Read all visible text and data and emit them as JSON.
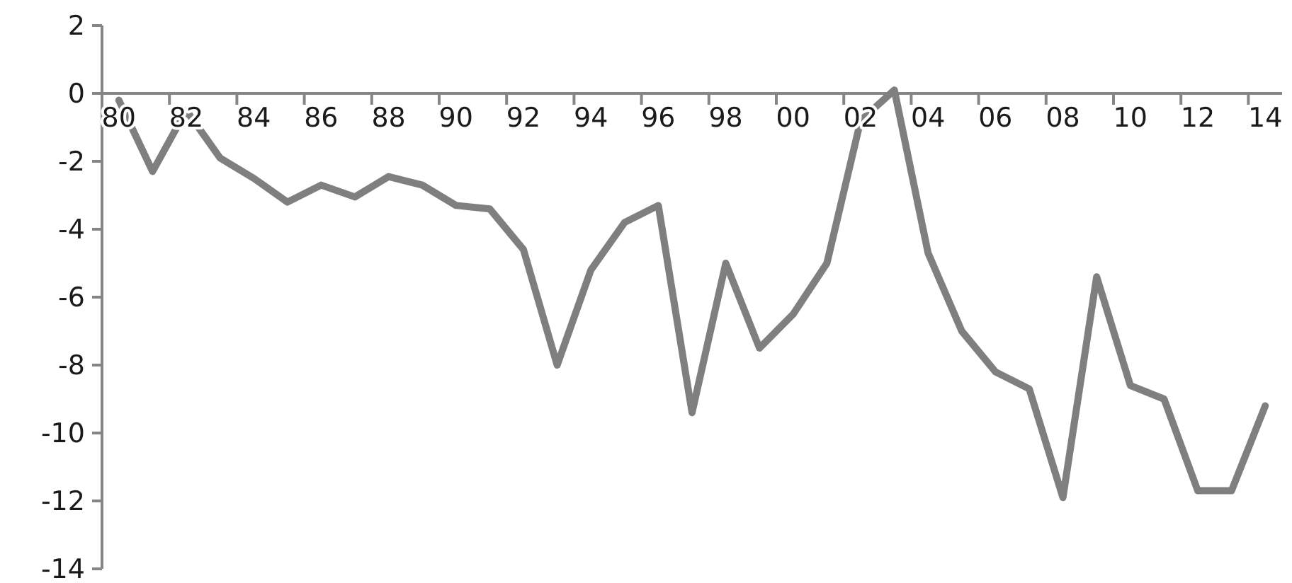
{
  "chart_data": {
    "type": "line",
    "categories": [
      "80",
      null,
      "82",
      null,
      "84",
      null,
      "86",
      null,
      "88",
      null,
      "90",
      null,
      "92",
      null,
      "94",
      null,
      "96",
      null,
      "98",
      null,
      "00",
      null,
      "02",
      null,
      "04",
      null,
      "06",
      null,
      "08",
      null,
      "10",
      null,
      "12",
      null,
      "14"
    ],
    "series": [
      {
        "color": "#7f7f7f",
        "values": [
          -0.2,
          -2.3,
          -0.5,
          -1.9,
          -2.5,
          -3.2,
          -2.7,
          -3.05,
          -2.45,
          -2.7,
          -3.3,
          -3.4,
          -4.6,
          -8.0,
          -5.2,
          -3.8,
          -3.3,
          -9.4,
          -5.0,
          -7.5,
          -6.5,
          -5.0,
          -0.8,
          0.1,
          -4.7,
          -7.0,
          -8.2,
          -8.7,
          -11.9,
          -5.4,
          -8.6,
          -9.0,
          -11.7,
          -11.7,
          -9.2
        ]
      }
    ],
    "ylim": [
      -14,
      2
    ],
    "yticks": [
      -14,
      -12,
      -10,
      -8,
      -6,
      -4,
      -2,
      0,
      2
    ],
    "grid": false,
    "marker": "none",
    "line_style": "solid"
  }
}
